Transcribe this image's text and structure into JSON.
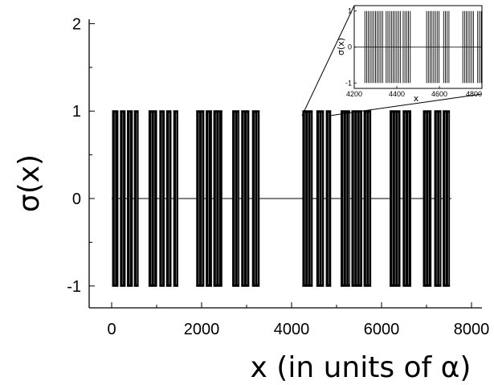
{
  "chart_data": [
    {
      "type": "line",
      "title": "",
      "xlabel": "x (in units of α)",
      "ylabel": "σ(x)",
      "xlim": [
        -500,
        8000
      ],
      "ylim": [
        -1.25,
        2.05
      ],
      "x_ticks": [
        0,
        2000,
        4000,
        6000,
        8000
      ],
      "x_tick_labels": [
        "0",
        "2000",
        "4000",
        "6000",
        "8000"
      ],
      "y_ticks": [
        -1,
        0,
        1,
        2
      ],
      "y_tick_labels": [
        "-1",
        "0",
        "1",
        "2"
      ],
      "baseline": 0,
      "series": [
        {
          "description": "step function switching between -1 and +1 (dense oscillation) within blocks; 0 elsewhere",
          "values_low": -1,
          "values_high": 1,
          "active_x_ranges": [
            [
              10,
              150
            ],
            [
              185,
              310
            ],
            [
              340,
              470
            ],
            [
              495,
              600
            ],
            [
              820,
              1010
            ],
            [
              1060,
              1180
            ],
            [
              1210,
              1330
            ],
            [
              1370,
              1480
            ],
            [
              1880,
              2060
            ],
            [
              2090,
              2230
            ],
            [
              2260,
              2460
            ],
            [
              2680,
              2840
            ],
            [
              2880,
              3060
            ],
            [
              3120,
              3290
            ],
            [
              4240,
              4470
            ],
            [
              4550,
              4720
            ],
            [
              4760,
              4880
            ],
            [
              5090,
              5300
            ],
            [
              5330,
              5570
            ],
            [
              5600,
              5770
            ],
            [
              6180,
              6420
            ],
            [
              6470,
              6660
            ],
            [
              6920,
              7110
            ],
            [
              7170,
              7330
            ],
            [
              7360,
              7520
            ]
          ]
        }
      ],
      "grid": false
    },
    {
      "type": "line",
      "title": "",
      "xlabel": "x",
      "ylabel": "σ(x)",
      "xlim": [
        4200,
        4800
      ],
      "ylim": [
        -1.15,
        1.15
      ],
      "x_ticks": [
        4200,
        4400,
        4600,
        4800
      ],
      "x_tick_labels": [
        "4200",
        "4400",
        "4600",
        "4800"
      ],
      "y_ticks": [
        -1,
        0,
        1
      ],
      "y_tick_labels": [
        "-1",
        "0",
        "1"
      ],
      "baseline": 0,
      "series": [
        {
          "description": "zoom of the step function between x=4200 and x=4800",
          "values_low": -1,
          "values_high": 1,
          "active_x_ranges": [
            [
              4250,
              4340
            ],
            [
              4350,
              4420
            ],
            [
              4430,
              4470
            ],
            [
              4540,
              4600
            ],
            [
              4620,
              4650
            ],
            [
              4710,
              4760
            ],
            [
              4780,
              4800
            ]
          ]
        }
      ],
      "grid": false
    }
  ]
}
